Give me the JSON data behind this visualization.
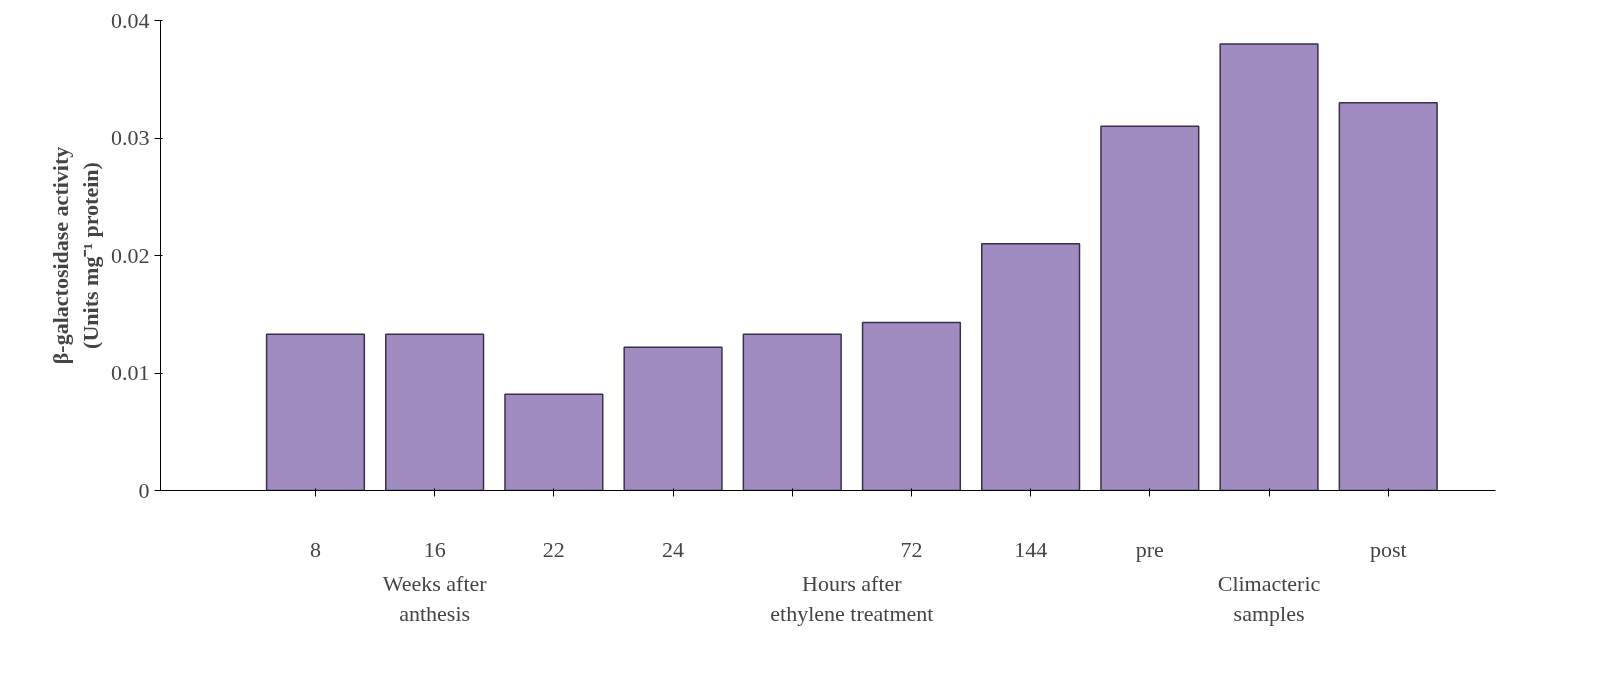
{
  "chart_data": {
    "type": "bar",
    "ylabel": "β-galactosidase activity\n(Units mg⁻¹ protein)",
    "categories": [
      "8",
      "16",
      "22",
      "24",
      null,
      "72",
      "144",
      "pre",
      null,
      "post"
    ],
    "values": [
      0.0133,
      0.0133,
      0.0082,
      0.0122,
      0.0133,
      0.0143,
      0.021,
      0.031,
      0.038,
      0.033
    ],
    "color": "#a08cc0",
    "ylim": [
      0,
      0.04
    ],
    "yticks": [
      0,
      0.01,
      0.02,
      0.03,
      0.04
    ],
    "annotations": [
      "Weeks after\nanthesis",
      "Hours after\nethylene treatment",
      "Climacteric\nsamples"
    ]
  }
}
